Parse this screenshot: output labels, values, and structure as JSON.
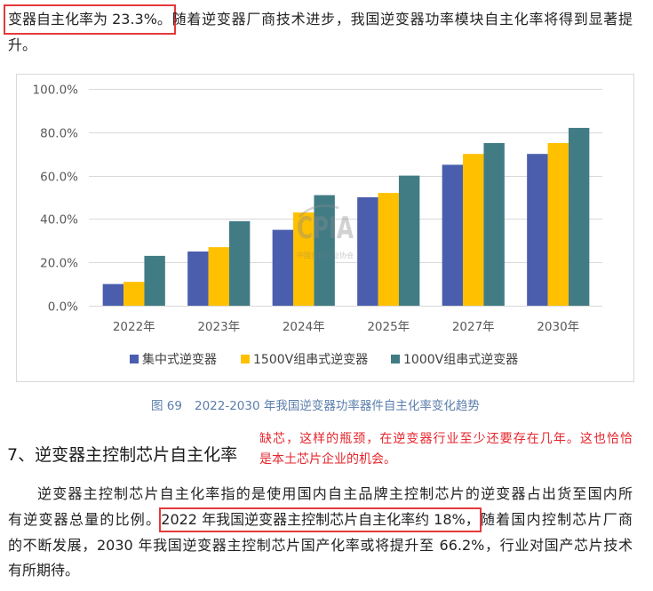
{
  "intro": {
    "line1_highlight": "变器自主化率为 23.3%。",
    "line1_rest": "随着逆变器厂商技术进步，我国逆变器功率模块自主化率将得到显著提",
    "line2": "升。"
  },
  "chart_data": {
    "type": "bar",
    "categories": [
      "2022年",
      "2023年",
      "2024年",
      "2025年",
      "2027年",
      "2030年"
    ],
    "series": [
      {
        "name": "集中式逆变器",
        "color": "#4A5EAD",
        "values": [
          10,
          25,
          35,
          50,
          65,
          70
        ]
      },
      {
        "name": "1500V组串式逆变器",
        "color": "#FFC000",
        "values": [
          11,
          27,
          43,
          52,
          70,
          75
        ]
      },
      {
        "name": "1000V组串式逆变器",
        "color": "#417C85",
        "values": [
          23,
          39,
          51,
          60,
          75,
          82
        ]
      }
    ],
    "ylim": [
      0,
      100
    ],
    "y_ticks": [
      0,
      20,
      40,
      60,
      80,
      100
    ],
    "y_tick_labels": [
      "0.0%",
      "20.0%",
      "40.0%",
      "60.0%",
      "80.0%",
      "100.0%"
    ],
    "grid": true,
    "legend_position": "bottom",
    "figure_label": "图 69",
    "title": "2022-2030 年我国逆变器功率器件自主化率变化趋势"
  },
  "watermark": {
    "logo_text": "CPIA",
    "org_name": "中国光伏行业协会"
  },
  "section": {
    "heading": "7、逆变器主控制芯片自主化率",
    "annotation_lines": [
      "缺芯，这样的瓶颈，在逆变器行业至少还要存在几年。这也恰恰",
      "是本土芯片企业的机会。"
    ],
    "paragraph": {
      "line1": "逆变器主控制芯片自主化率指的是使用国内自主品牌主控制芯片的逆变器占出货至国内所",
      "line2_before": "有逆变器总量的比例。",
      "line2_highlight": "2022 年我国逆变器主控制芯片自主化率约 18%，",
      "line2_after": "随着国内控制芯片厂商",
      "line3": "的不断发展，2030 年我国逆变器主控制芯片国产化率或将提升至 66.2%，行业对国产芯片技术",
      "line4": "有所期待。"
    }
  }
}
